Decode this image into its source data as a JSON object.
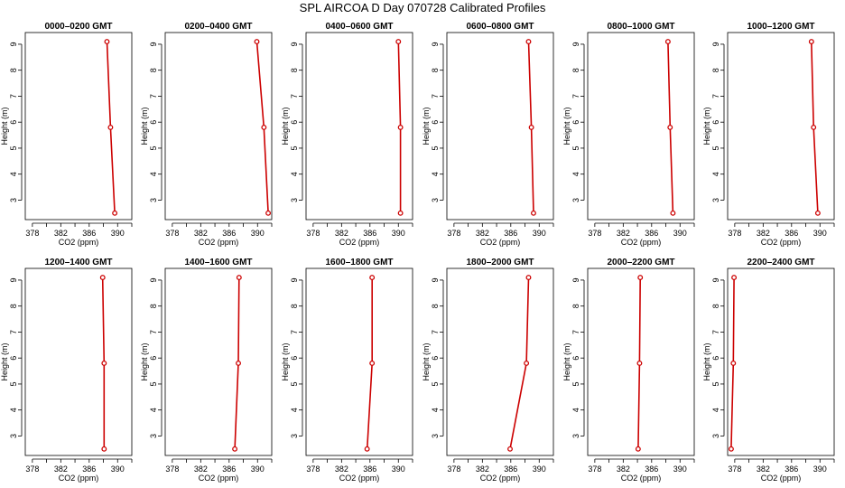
{
  "title": "SPL AIRCOA D  Day 070728  Calibrated Profiles",
  "chart_data": {
    "type": "line",
    "xlabel": "CO2 (ppm)",
    "ylabel": "Height (m)",
    "xlim": [
      377,
      392
    ],
    "ylim": [
      2.25,
      9.45
    ],
    "xticks": [
      378,
      382,
      386,
      390
    ],
    "yticks": [
      3,
      4,
      5,
      6,
      7,
      8,
      9
    ],
    "series_color": "#cc0000",
    "panels": [
      {
        "title": "0000–0200 GMT",
        "points": [
          {
            "x": 388.5,
            "y": 9.1
          },
          {
            "x": 389.0,
            "y": 5.8
          },
          {
            "x": 389.6,
            "y": 2.5
          }
        ]
      },
      {
        "title": "0200–0400 GMT",
        "points": [
          {
            "x": 389.9,
            "y": 9.1
          },
          {
            "x": 390.9,
            "y": 5.8
          },
          {
            "x": 391.5,
            "y": 2.5
          }
        ]
      },
      {
        "title": "0400–0600 GMT",
        "points": [
          {
            "x": 390.0,
            "y": 9.1
          },
          {
            "x": 390.3,
            "y": 5.8
          },
          {
            "x": 390.3,
            "y": 2.5
          }
        ]
      },
      {
        "title": "0600–0800 GMT",
        "points": [
          {
            "x": 388.5,
            "y": 9.1
          },
          {
            "x": 388.9,
            "y": 5.8
          },
          {
            "x": 389.2,
            "y": 2.5
          }
        ]
      },
      {
        "title": "0800–1000 GMT",
        "points": [
          {
            "x": 388.3,
            "y": 9.1
          },
          {
            "x": 388.6,
            "y": 5.8
          },
          {
            "x": 389.0,
            "y": 2.5
          }
        ]
      },
      {
        "title": "1000–1200 GMT",
        "points": [
          {
            "x": 388.8,
            "y": 9.1
          },
          {
            "x": 389.1,
            "y": 5.8
          },
          {
            "x": 389.7,
            "y": 2.5
          }
        ]
      },
      {
        "title": "1200–1400 GMT",
        "points": [
          {
            "x": 387.9,
            "y": 9.1
          },
          {
            "x": 388.1,
            "y": 5.8
          },
          {
            "x": 388.1,
            "y": 2.5
          }
        ]
      },
      {
        "title": "1400–1600 GMT",
        "points": [
          {
            "x": 387.4,
            "y": 9.1
          },
          {
            "x": 387.3,
            "y": 5.8
          },
          {
            "x": 386.8,
            "y": 2.5
          }
        ]
      },
      {
        "title": "1600–1800 GMT",
        "points": [
          {
            "x": 386.3,
            "y": 9.1
          },
          {
            "x": 386.3,
            "y": 5.8
          },
          {
            "x": 385.6,
            "y": 2.5
          }
        ]
      },
      {
        "title": "1800–2000 GMT",
        "points": [
          {
            "x": 388.5,
            "y": 9.1
          },
          {
            "x": 388.2,
            "y": 5.8
          },
          {
            "x": 385.9,
            "y": 2.5
          }
        ]
      },
      {
        "title": "2000–2200 GMT",
        "points": [
          {
            "x": 384.4,
            "y": 9.1
          },
          {
            "x": 384.3,
            "y": 5.8
          },
          {
            "x": 384.1,
            "y": 2.5
          }
        ]
      },
      {
        "title": "2200–2400 GMT",
        "points": [
          {
            "x": 377.9,
            "y": 9.1
          },
          {
            "x": 377.8,
            "y": 5.8
          },
          {
            "x": 377.5,
            "y": 2.5
          }
        ]
      }
    ]
  }
}
